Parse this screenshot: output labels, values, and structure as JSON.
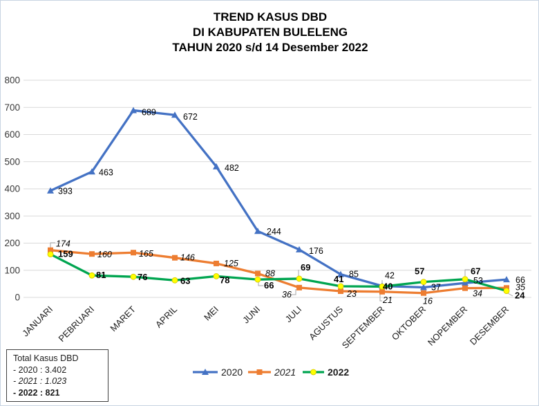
{
  "title": {
    "line1": "TREND KASUS DBD",
    "line2": "DI KABUPATEN BULELENG",
    "line3": "TAHUN 2020 s/d  14 Desember 2022"
  },
  "chart_data": {
    "type": "line",
    "title": "TREND KASUS DBD DI KABUPATEN BULELENG TAHUN 2020 s/d 14 Desember 2022",
    "categories": [
      "JANUARI",
      "PEBRUARI",
      "MARET",
      "APRIL",
      "MEI",
      "JUNI",
      "JULI",
      "AGUSTUS",
      "SEPTEMBER",
      "OKTOBER",
      "NOPEMBER",
      "DESEMBER"
    ],
    "series": [
      {
        "name": "2020",
        "color": "#4472C4",
        "marker": "triangle",
        "label_style": "regular",
        "values": [
          393,
          463,
          689,
          672,
          482,
          244,
          176,
          85,
          42,
          37,
          53,
          66
        ]
      },
      {
        "name": "2021",
        "color": "#ED7D31",
        "marker": "square",
        "label_style": "italic",
        "values": [
          174,
          160,
          165,
          146,
          125,
          88,
          36,
          23,
          21,
          16,
          34,
          35
        ]
      },
      {
        "name": "2022",
        "color": "#00A550",
        "marker": "circle",
        "marker_fill": "#FFFF00",
        "label_style": "bold",
        "values": [
          159,
          81,
          76,
          63,
          78,
          66,
          69,
          41,
          40,
          57,
          67,
          24
        ]
      }
    ],
    "ylim": [
      0,
      800
    ],
    "ytick_step": 100,
    "yticks": [
      "0",
      "100",
      "200",
      "300",
      "400",
      "500",
      "600",
      "700",
      "800"
    ],
    "grid": true,
    "legend_position": "bottom",
    "legend_entries": [
      "2020",
      "2021",
      "2022"
    ]
  },
  "summary_box": {
    "title": "Total Kasus DBD",
    "line_2020": "- 2020 : 3.402",
    "line_2021": "- 2021 : 1.023",
    "line_2022": "- 2022 : 821"
  },
  "colors": {
    "series_2020": "#4472C4",
    "series_2021": "#ED7D31",
    "series_2022": "#00A550",
    "marker_2022_fill": "#FFFF00",
    "gridline": "#D9D9D9",
    "leader": "#A6A6A6"
  }
}
